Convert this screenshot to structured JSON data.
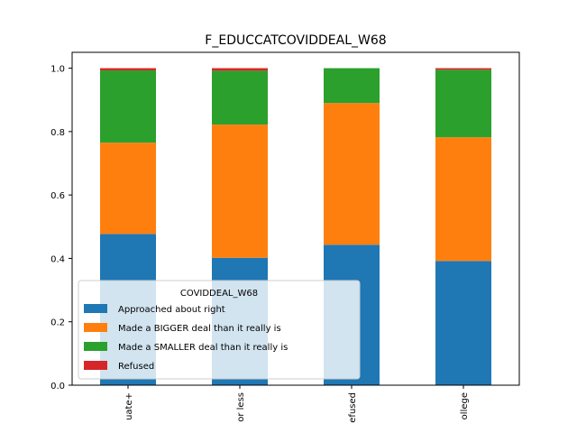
{
  "chart_data": {
    "type": "bar",
    "stacked": true,
    "title": "F_EDUCCATCOVIDDEAL_W68",
    "xlabel": "",
    "ylabel": "",
    "ylim": [
      0,
      1.05
    ],
    "yticks": [
      "0.0",
      "0.2",
      "0.4",
      "0.6",
      "0.8",
      "1.0"
    ],
    "categories": [
      "uate+",
      "or less",
      "efused",
      "ollege"
    ],
    "series": [
      {
        "name": "Approached about right",
        "color": "#1f77b4",
        "values": [
          0.477,
          0.402,
          0.443,
          0.392
        ]
      },
      {
        "name": "Made a BIGGER deal than it really is",
        "color": "#ff7f0e",
        "values": [
          0.288,
          0.42,
          0.447,
          0.39
        ]
      },
      {
        "name": "Made a SMALLER deal than it really is",
        "color": "#2ca02c",
        "values": [
          0.228,
          0.17,
          0.11,
          0.213
        ]
      },
      {
        "name": "Refused",
        "color": "#d62728",
        "values": [
          0.007,
          0.008,
          0.0,
          0.005
        ]
      }
    ],
    "legend": {
      "title": "COVIDDEAL_W68",
      "placement": "lower-left"
    },
    "grid": false
  }
}
